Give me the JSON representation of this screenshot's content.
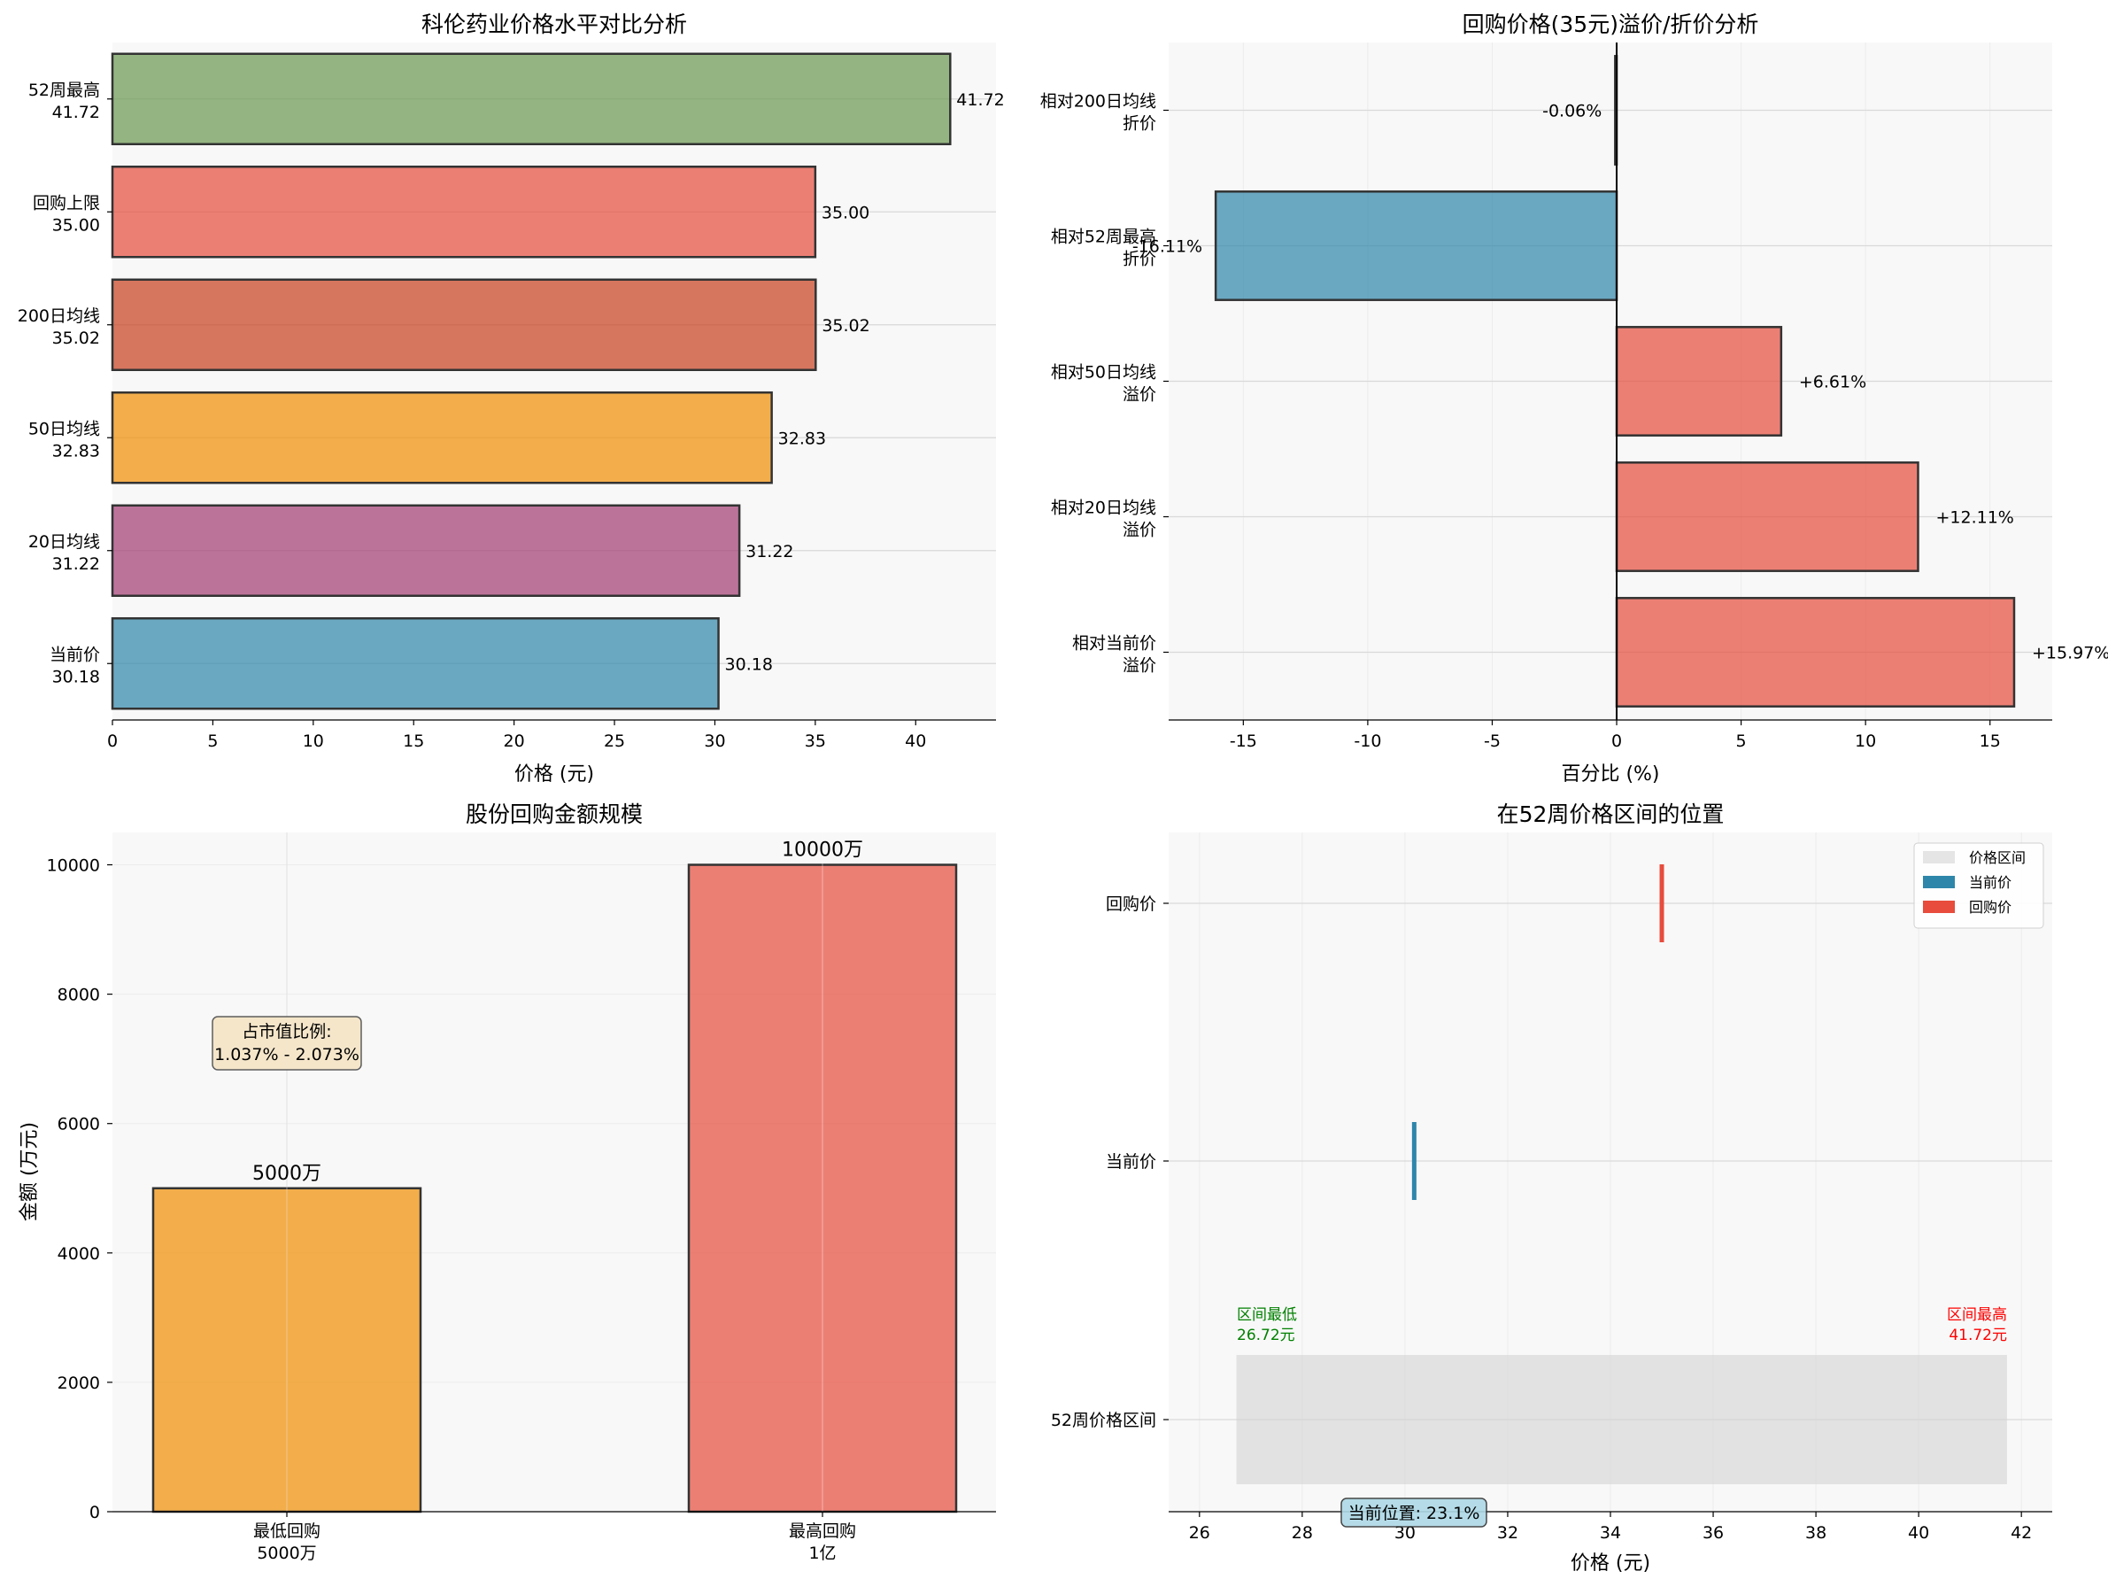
{
  "chart_data": [
    {
      "type": "bar",
      "orientation": "horizontal",
      "title": "科伦药业价格水平对比分析",
      "xlabel": "价格 (元)",
      "ylabel": "",
      "xlim": [
        0,
        44
      ],
      "xticks": [
        "0",
        "5",
        "10",
        "15",
        "20",
        "25",
        "30",
        "35",
        "40"
      ],
      "categories": [
        {
          "line1": "当前价",
          "line2": "30.18"
        },
        {
          "line1": "20日均线",
          "line2": "31.22"
        },
        {
          "line1": "50日均线",
          "line2": "32.83"
        },
        {
          "line1": "200日均线",
          "line2": "35.02"
        },
        {
          "line1": "回购上限",
          "line2": "35.00"
        },
        {
          "line1": "52周最高",
          "line2": "41.72"
        }
      ],
      "values": [
        30.18,
        31.22,
        32.83,
        35.02,
        35.0,
        41.72
      ],
      "value_labels": [
        "30.18",
        "31.22",
        "32.83",
        "35.02",
        "35.00",
        "41.72"
      ],
      "colors": [
        "#2E86AB",
        "#A23B72",
        "#F18F01",
        "#C73E1D",
        "#E74C3C",
        "#6A994E"
      ]
    },
    {
      "type": "bar",
      "orientation": "horizontal",
      "title": "回购价格(35元)溢价/折价分析",
      "xlabel": "百分比 (%)",
      "ylabel": "",
      "xlim": [
        -18.0,
        17.5
      ],
      "xticks": [
        "-15",
        "-10",
        "-5",
        "0",
        "5",
        "10",
        "15"
      ],
      "categories": [
        {
          "line1": "相对当前价",
          "line2": "溢价"
        },
        {
          "line1": "相对20日均线",
          "line2": "溢价"
        },
        {
          "line1": "相对50日均线",
          "line2": "溢价"
        },
        {
          "line1": "相对52周最高",
          "line2": "折价"
        },
        {
          "line1": "相对200日均线",
          "line2": "折价"
        }
      ],
      "values": [
        15.97,
        12.11,
        6.61,
        -16.11,
        -0.06
      ],
      "value_labels": [
        "+15.97%",
        "+12.11%",
        "+6.61%",
        "-16.11%",
        "-0.06%"
      ],
      "colors": [
        "#E74C3C",
        "#E74C3C",
        "#E74C3C",
        "#2E86AB",
        "#2E86AB"
      ]
    },
    {
      "type": "bar",
      "orientation": "vertical",
      "title": "股份回购金额规模",
      "xlabel": "",
      "ylabel": "金额 (万元)",
      "ylim": [
        0,
        10500
      ],
      "yticks": [
        "0",
        "2000",
        "4000",
        "6000",
        "8000",
        "10000"
      ],
      "categories": [
        {
          "line1": "最低回购",
          "line2": "5000万"
        },
        {
          "line1": "最高回购",
          "line2": "1亿"
        }
      ],
      "values": [
        5000,
        10000
      ],
      "value_labels": [
        "5000万",
        "10000万"
      ],
      "colors": [
        "#F18F01",
        "#E74C3C"
      ],
      "annotation": {
        "line1": "占市值比例:",
        "line2": "1.037% - 2.073%"
      }
    },
    {
      "type": "range",
      "title": "在52周价格区间的位置",
      "xlabel": "价格 (元)",
      "ylabel": "",
      "xlim": [
        25.4,
        42.6
      ],
      "xticks": [
        "26",
        "28",
        "30",
        "32",
        "34",
        "36",
        "38",
        "40",
        "42"
      ],
      "categories": [
        "52周价格区间",
        "当前价",
        "回购价"
      ],
      "range": {
        "low": 26.72,
        "high": 41.72
      },
      "current_price": 30.18,
      "buyback_price": 35.0,
      "low_label": {
        "line1": "区间最低",
        "line2": "26.72元"
      },
      "high_label": {
        "line1": "区间最高",
        "line2": "41.72元"
      },
      "position_label": "当前位置: 23.1%",
      "legend": [
        "价格区间",
        "当前价",
        "回购价"
      ],
      "colors": {
        "range": "#D3D3D3",
        "current": "#2E86AB",
        "buyback": "#E74C3C",
        "low_text": "#008000",
        "high_text": "#FF0000"
      }
    }
  ]
}
